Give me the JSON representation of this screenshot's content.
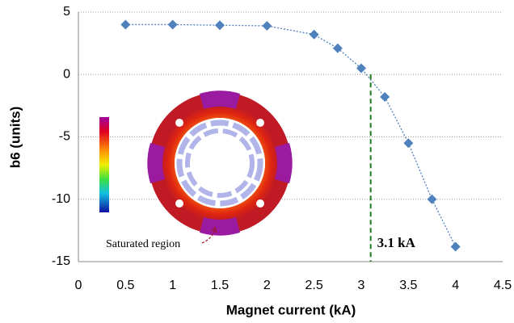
{
  "chart_data": {
    "type": "line",
    "x_label": "Magnet current (kA)",
    "y_label": "b6 (units)",
    "x": [
      0.5,
      1,
      1.5,
      2,
      2.5,
      2.75,
      3,
      3.25,
      3.5,
      3.75,
      4
    ],
    "series": [
      {
        "color": "#4f81bd",
        "values": [
          4.0,
          4.0,
          3.95,
          3.9,
          3.2,
          2.1,
          0.5,
          -1.8,
          -5.5,
          -10,
          -13.8
        ]
      }
    ],
    "xlim": [
      0,
      4.5
    ],
    "xticks": [
      0,
      0.5,
      1,
      1.5,
      2,
      2.5,
      3,
      3.5,
      4,
      4.5
    ],
    "ylim": [
      -15,
      5
    ],
    "yticks": [
      -15,
      -10,
      -5,
      0,
      5
    ],
    "grid": true,
    "annotations": [
      {
        "text": "3.1 kA",
        "x": 3.1,
        "color": "#1e7a1e"
      },
      {
        "text": "Saturated region",
        "color": "#a01818"
      }
    ]
  }
}
